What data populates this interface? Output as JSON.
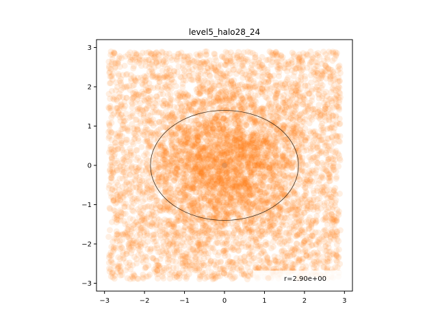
{
  "chart_data": {
    "type": "scatter",
    "title": "level5_halo28_24",
    "xlabel": "",
    "ylabel": "",
    "xlim": [
      -3.2,
      3.2
    ],
    "ylim": [
      -3.2,
      3.2
    ],
    "xticks": [
      -3,
      -2,
      -1,
      0,
      1,
      2,
      3
    ],
    "yticks": [
      -3,
      -2,
      -1,
      0,
      1,
      2,
      3
    ],
    "xtick_labels": [
      "−3",
      "−2",
      "−1",
      "0",
      "1",
      "2",
      "3"
    ],
    "ytick_labels": [
      "−3",
      "−2",
      "−1",
      "0",
      "1",
      "2",
      "3"
    ],
    "grid": false,
    "point_color": "#ff7f0e",
    "point_alpha": 0.12,
    "point_range": [
      -2.9,
      2.9
    ],
    "center": [
      0,
      0
    ],
    "ellipse": {
      "center": [
        0,
        0
      ],
      "rx": 1.85,
      "ry": 1.4,
      "color": "#3a2a1a"
    },
    "legend": {
      "position": "lower-right",
      "label": "r=2.90e+00"
    }
  }
}
